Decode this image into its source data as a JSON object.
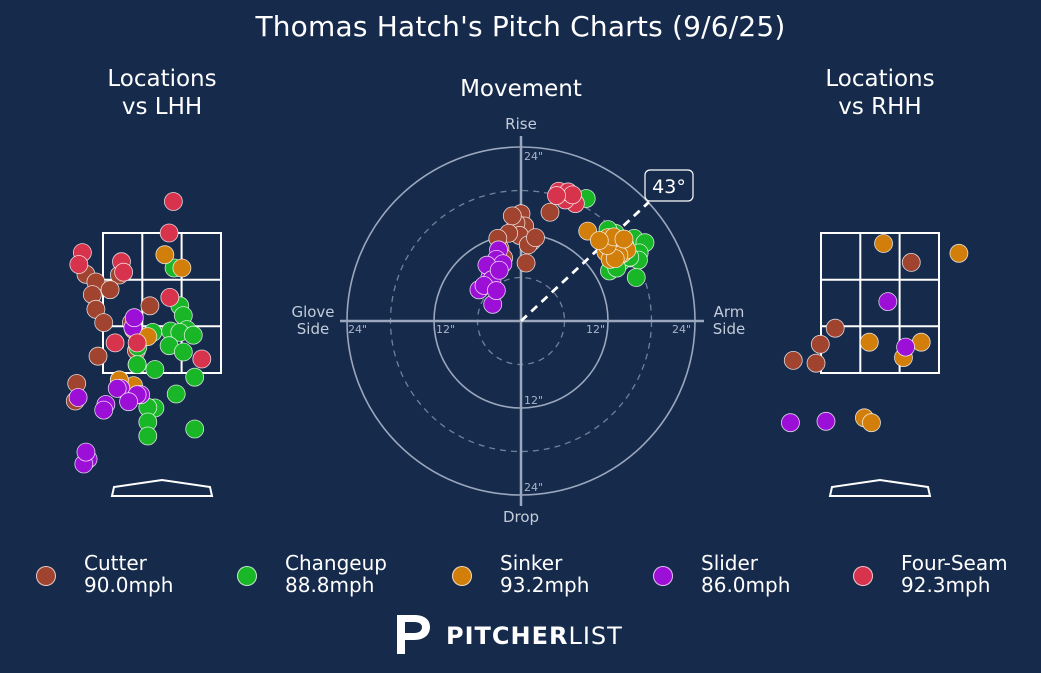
{
  "title": "Thomas Hatch's Pitch Charts (9/6/25)",
  "panels": {
    "lhh_title": "Locations\nvs LHH",
    "movement_title": "Movement",
    "rhh_title": "Locations\nvs RHH"
  },
  "movement_labels": {
    "rise": "Rise",
    "drop": "Drop",
    "glove_side": "Glove\nSide",
    "arm_side": "Arm\nSide",
    "arm_angle": "43°",
    "ring_labels": [
      "24\"",
      "12\"",
      "12\"",
      "24\"",
      "24\"",
      "12\"",
      "12\"",
      "24\""
    ]
  },
  "pitch_types": [
    {
      "name": "Cutter",
      "velocity": "90.0mph",
      "color": "#a0432f"
    },
    {
      "name": "Changeup",
      "velocity": "88.8mph",
      "color": "#19b628"
    },
    {
      "name": "Sinker",
      "velocity": "93.2mph",
      "color": "#d17f0a"
    },
    {
      "name": "Slider",
      "velocity": "86.0mph",
      "color": "#9b0fd6"
    },
    {
      "name": "Four-Seam",
      "velocity": "92.3mph",
      "color": "#d7334c"
    }
  ],
  "brand": {
    "bold": "PITCHER",
    "light": "LIST"
  },
  "chart_data": [
    {
      "type": "scatter",
      "title": "Locations vs LHH",
      "description_units": "plate_x (ft), plate_z (ft)",
      "xlim": [
        -2.0,
        2.0
      ],
      "ylim": [
        -0.6,
        4.6
      ],
      "strike_zone": {
        "x": [
          -0.83,
          0.83
        ],
        "z": [
          1.5,
          3.5
        ]
      },
      "series": [
        {
          "name": "Cutter",
          "points": [
            [
              -1.07,
              2.91
            ],
            [
              -0.93,
              2.8
            ],
            [
              -0.98,
              2.62
            ],
            [
              -0.6,
              2.9
            ],
            [
              -0.93,
              2.41
            ],
            [
              -0.73,
              2.69
            ],
            [
              -0.82,
              2.22
            ],
            [
              -0.17,
              2.46
            ],
            [
              -0.43,
              2.22
            ],
            [
              -0.9,
              1.74
            ],
            [
              -0.35,
              1.62
            ],
            [
              -1.2,
              1.35
            ],
            [
              -0.36,
              1.82
            ],
            [
              -1.22,
              1.1
            ]
          ]
        },
        {
          "name": "Changeup",
          "points": [
            [
              0.17,
              3.0
            ],
            [
              0.25,
              2.46
            ],
            [
              0.3,
              2.32
            ],
            [
              0.35,
              2.12
            ],
            [
              0.12,
              2.1
            ],
            [
              0.25,
              2.08
            ],
            [
              -0.13,
              2.08
            ],
            [
              0.44,
              2.04
            ],
            [
              -0.1,
              1.55
            ],
            [
              -0.34,
              1.87
            ],
            [
              -0.35,
              1.62
            ],
            [
              0.1,
              1.89
            ],
            [
              0.3,
              1.8
            ],
            [
              0.46,
              1.44
            ],
            [
              -0.6,
              1.4
            ],
            [
              -0.1,
              1.0
            ],
            [
              0.2,
              1.2
            ],
            [
              -0.2,
              1.01
            ],
            [
              -0.2,
              0.8
            ],
            [
              0.46,
              0.7
            ],
            [
              -0.2,
              0.6
            ]
          ]
        },
        {
          "name": "Sinker",
          "points": [
            [
              0.28,
              3.0
            ],
            [
              -0.4,
              2.12
            ],
            [
              -0.4,
              1.32
            ],
            [
              -0.6,
              1.4
            ],
            [
              0.04,
              3.19
            ],
            [
              -0.2,
              2.02
            ]
          ]
        },
        {
          "name": "Slider",
          "points": [
            [
              -0.41,
              2.15
            ],
            [
              -0.39,
              2.29
            ],
            [
              -0.58,
              1.28
            ],
            [
              -0.3,
              1.19
            ],
            [
              -0.63,
              1.28
            ],
            [
              -0.79,
              1.05
            ],
            [
              -0.35,
              1.19
            ],
            [
              -1.04,
              0.27
            ],
            [
              -0.47,
              1.09
            ],
            [
              -1.1,
              0.2
            ],
            [
              -1.07,
              0.37
            ],
            [
              -0.82,
              0.97
            ],
            [
              -1.18,
              1.15
            ]
          ]
        },
        {
          "name": "Four-Seam",
          "points": [
            [
              0.16,
              3.95
            ],
            [
              0.1,
              3.5
            ],
            [
              -1.12,
              3.22
            ],
            [
              -1.17,
              3.05
            ],
            [
              -0.57,
              3.09
            ],
            [
              -0.54,
              2.94
            ],
            [
              0.11,
              2.58
            ],
            [
              -0.66,
              1.93
            ],
            [
              -0.35,
              1.93
            ],
            [
              0.56,
              1.7
            ]
          ]
        }
      ]
    },
    {
      "type": "scatter",
      "title": "Movement",
      "description_units": "horizontal break (in, arm side positive), induced vertical break (in)",
      "xlim": [
        -24,
        24
      ],
      "ylim": [
        -24,
        24
      ],
      "rings": [
        6,
        12,
        18,
        24
      ],
      "arm_angle_deg": 43,
      "series": [
        {
          "name": "Cutter",
          "points": [
            [
              0.0,
              14.8
            ],
            [
              0.5,
              13.1
            ],
            [
              1.5,
              11.0
            ],
            [
              -0.7,
              13.5
            ],
            [
              -1.2,
              14.5
            ],
            [
              -0.2,
              11.8
            ],
            [
              -1.7,
              12.1
            ],
            [
              -2.9,
              10.0
            ],
            [
              -2.4,
              8.7
            ],
            [
              1.0,
              10.5
            ],
            [
              2.0,
              11.5
            ],
            [
              -3.2,
              11.4
            ],
            [
              4.0,
              15.0
            ],
            [
              0.7,
              8.0
            ]
          ]
        },
        {
          "name": "Changeup",
          "points": [
            [
              13.0,
              12.1
            ],
            [
              12.0,
              12.6
            ],
            [
              15.6,
              11.4
            ],
            [
              17.1,
              10.8
            ],
            [
              16.3,
              9.4
            ],
            [
              14.3,
              10.5
            ],
            [
              15.1,
              8.7
            ],
            [
              16.2,
              8.4
            ],
            [
              13.7,
              8.1
            ],
            [
              12.5,
              8.0
            ],
            [
              15.0,
              8.8
            ],
            [
              12.2,
              6.9
            ],
            [
              15.9,
              6.0
            ],
            [
              13.2,
              7.3
            ],
            [
              9.0,
              16.9
            ]
          ]
        },
        {
          "name": "Sinker",
          "points": [
            [
              13.1,
              10.8
            ],
            [
              14.0,
              9.3
            ],
            [
              12.6,
              9.7
            ],
            [
              13.3,
              10.4
            ],
            [
              14.6,
              9.8
            ],
            [
              11.7,
              9.5
            ],
            [
              12.3,
              8.5
            ],
            [
              13.5,
              9.1
            ],
            [
              9.2,
              12.4
            ],
            [
              12.0,
              11.5
            ],
            [
              13.0,
              8.6
            ],
            [
              11.9,
              10.4
            ],
            [
              12.8,
              11.6
            ],
            [
              10.8,
              11.1
            ],
            [
              14.2,
              11.3
            ]
          ]
        },
        {
          "name": "Slider",
          "points": [
            [
              -3.1,
              9.8
            ],
            [
              -3.4,
              8.5
            ],
            [
              -2.5,
              7.9
            ],
            [
              -4.3,
              6.0
            ],
            [
              -4.7,
              7.7
            ],
            [
              -5.8,
              4.3
            ],
            [
              -4.0,
              5.7
            ],
            [
              -3.9,
              2.3
            ],
            [
              -5.1,
              4.9
            ],
            [
              -3.4,
              4.2
            ],
            [
              -3.0,
              7.0
            ]
          ]
        },
        {
          "name": "Four-Seam",
          "points": [
            [
              5.8,
              17.2
            ],
            [
              6.9,
              16.9
            ],
            [
              7.5,
              16.2
            ],
            [
              6.1,
              16.7
            ],
            [
              5.2,
              17.9
            ],
            [
              6.5,
              17.8
            ],
            [
              7.1,
              17.4
            ],
            [
              4.9,
              17.3
            ]
          ]
        }
      ]
    },
    {
      "type": "scatter",
      "title": "Locations vs RHH",
      "description_units": "plate_x (ft), plate_z (ft)",
      "xlim": [
        -2.0,
        2.0
      ],
      "ylim": [
        -0.6,
        4.6
      ],
      "strike_zone": {
        "x": [
          -0.83,
          0.83
        ],
        "z": [
          1.5,
          3.5
        ]
      },
      "series": [
        {
          "name": "Cutter",
          "points": [
            [
              0.44,
              3.08
            ],
            [
              -0.63,
              2.14
            ],
            [
              -0.84,
              1.91
            ],
            [
              -1.22,
              1.68
            ],
            [
              -0.9,
              1.64
            ]
          ]
        },
        {
          "name": "Changeup",
          "points": []
        },
        {
          "name": "Sinker",
          "points": [
            [
              0.05,
              3.35
            ],
            [
              1.11,
              3.21
            ],
            [
              -0.15,
              1.94
            ],
            [
              0.58,
              1.94
            ],
            [
              0.33,
              1.72
            ],
            [
              -0.22,
              0.86
            ],
            [
              -0.12,
              0.79
            ]
          ]
        },
        {
          "name": "Slider",
          "points": [
            [
              0.11,
              2.52
            ],
            [
              0.36,
              1.87
            ],
            [
              -1.26,
              0.79
            ],
            [
              -0.76,
              0.81
            ]
          ]
        },
        {
          "name": "Four-Seam",
          "points": []
        }
      ]
    }
  ]
}
